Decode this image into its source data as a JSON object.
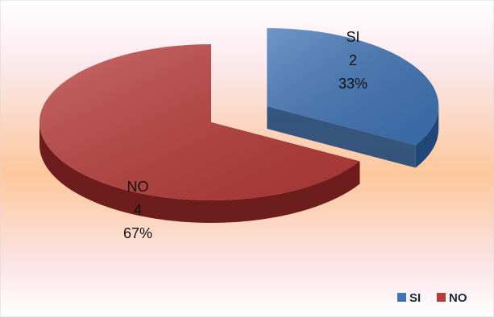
{
  "chart_data": {
    "type": "pie",
    "style": "3d-exploded",
    "title": "",
    "slices": [
      {
        "label": "SI",
        "value": 2,
        "percent": "33%",
        "color": "#3f74b6",
        "side_color": "#1f4777"
      },
      {
        "label": "NO",
        "value": 4,
        "percent": "67%",
        "color": "#b83c3a",
        "side_color": "#6e1d1d"
      }
    ],
    "legend": {
      "position": "bottom-right",
      "items": [
        {
          "label": "SI",
          "color": "#3f74b6"
        },
        {
          "label": "NO",
          "color": "#b83c3a"
        }
      ]
    },
    "background": {
      "gradient": [
        "#ffffff",
        "#fbe9ee",
        "#fcc79b",
        "#fbe6ea",
        "#ffffff"
      ]
    }
  }
}
